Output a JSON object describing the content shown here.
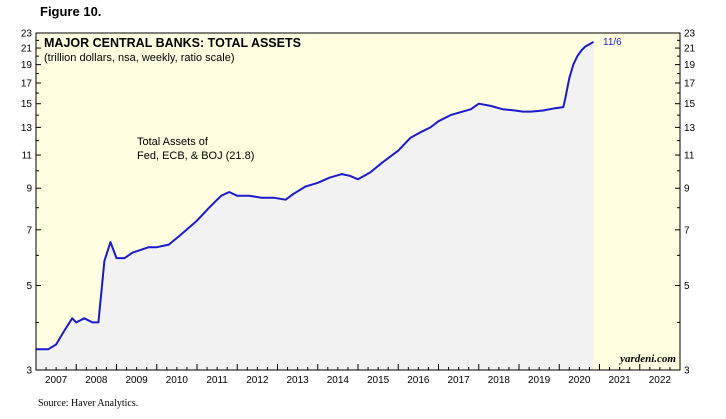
{
  "figure_label": "Figure 10.",
  "source": "Source: Haver Analytics.",
  "watermark": "yardeni.com",
  "colors": {
    "plot_bg": "#fffee0",
    "fill_under": "#f2f2f2",
    "line": "#1a1acc",
    "projection_bg": "#fffee0"
  },
  "chart_data": {
    "type": "line",
    "title": "MAJOR CENTRAL BANKS: TOTAL ASSETS",
    "subtitle": "(trillion dollars, nsa, weekly, ratio scale)",
    "annotation": [
      "Total Assets of",
      "Fed, ECB, & BOJ (21.8)"
    ],
    "end_label": "11/6",
    "y_scale": "log",
    "ylim": [
      3,
      23
    ],
    "yticks": [
      3,
      5,
      7,
      9,
      11,
      13,
      15,
      17,
      19,
      21,
      23
    ],
    "xlim": [
      2007.0,
      2023.0
    ],
    "xtick_labels": [
      "2007",
      "2008",
      "2009",
      "2010",
      "2011",
      "2012",
      "2013",
      "2014",
      "2015",
      "2016",
      "2017",
      "2018",
      "2019",
      "2020",
      "2021",
      "2022"
    ],
    "projection_start": 2020.85,
    "grid": false,
    "legend": "none",
    "series": [
      {
        "x": [
          2007.0,
          2007.3,
          2007.5,
          2007.7,
          2007.9,
          2008.0,
          2008.2,
          2008.4,
          2008.55,
          2008.7,
          2008.85,
          2009.0,
          2009.2,
          2009.4,
          2009.6,
          2009.8,
          2010.0,
          2010.3,
          2010.6,
          2011.0,
          2011.3,
          2011.6,
          2011.8,
          2012.0,
          2012.3,
          2012.6,
          2012.9,
          2013.2,
          2013.4,
          2013.7,
          2014.0,
          2014.3,
          2014.6,
          2014.8,
          2015.0,
          2015.3,
          2015.6,
          2016.0,
          2016.3,
          2016.6,
          2016.8,
          2017.0,
          2017.3,
          2017.6,
          2017.8,
          2018.0,
          2018.3,
          2018.6,
          2018.9,
          2019.1,
          2019.3,
          2019.6,
          2019.9,
          2020.1,
          2020.15,
          2020.25,
          2020.35,
          2020.45,
          2020.55,
          2020.65,
          2020.75,
          2020.85
        ],
        "values": [
          3.4,
          3.4,
          3.5,
          3.8,
          4.1,
          4.0,
          4.1,
          4.0,
          4.0,
          5.8,
          6.5,
          5.9,
          5.9,
          6.1,
          6.2,
          6.3,
          6.3,
          6.4,
          6.8,
          7.4,
          8.0,
          8.6,
          8.8,
          8.6,
          8.6,
          8.5,
          8.5,
          8.4,
          8.7,
          9.1,
          9.3,
          9.6,
          9.8,
          9.7,
          9.5,
          9.9,
          10.5,
          11.3,
          12.2,
          12.7,
          13.0,
          13.5,
          14.0,
          14.3,
          14.5,
          15.0,
          14.8,
          14.5,
          14.4,
          14.3,
          14.3,
          14.4,
          14.6,
          14.7,
          15.5,
          17.5,
          19.0,
          20.0,
          20.7,
          21.2,
          21.5,
          21.8
        ]
      }
    ]
  }
}
